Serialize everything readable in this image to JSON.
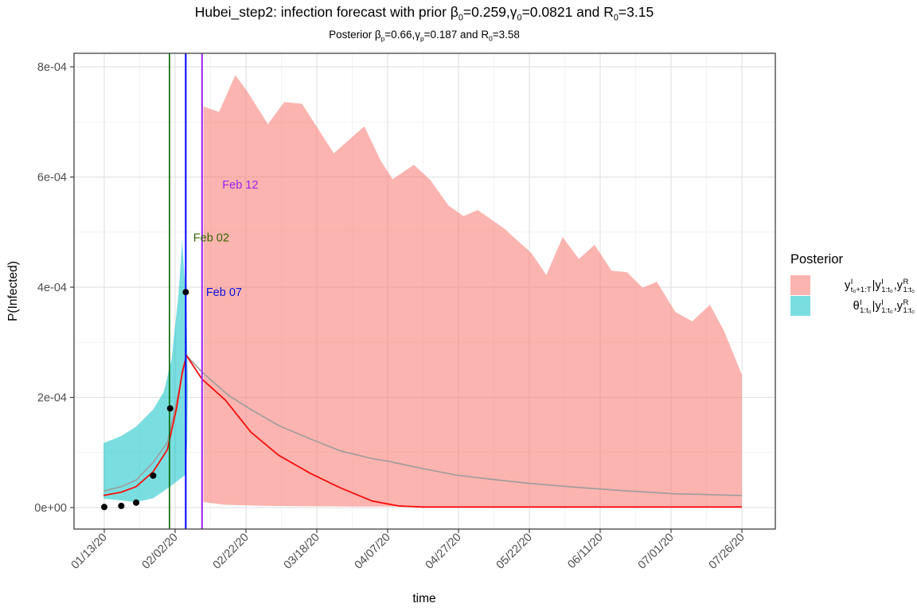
{
  "figure": {
    "title": {
      "plain": "Hubei_step2: infection forecast with prior β0=0.259,γ0=0.0821 and R0=3.15",
      "segments": [
        {
          "text": "Hubei_step2: infection forecast with prior β",
          "sub": "0"
        },
        {
          "text": "=0.259,γ",
          "sub": "0"
        },
        {
          "text": "=0.0821 and R",
          "sub": "0"
        },
        {
          "text": "=3.15"
        }
      ]
    },
    "subtitle": {
      "plain": "Posterior βp=0.66,γp=0.187 and R0=3.58",
      "segments": [
        {
          "text": "Posterior β",
          "sub": "p"
        },
        {
          "text": "=0.66,γ",
          "sub": "p"
        },
        {
          "text": "=0.187 and R",
          "sub": "0"
        },
        {
          "text": "=3.58"
        }
      ]
    }
  },
  "legend": {
    "title": "Posterior",
    "items": [
      {
        "swatch_color": "rgba(248,118,109,0.55)",
        "label_plain": "y^I_{t0+1:T} | y^I_{1:t0}, y^R_{1:t0}",
        "label_segments": [
          {
            "base": "y",
            "sup": "I",
            "sub": "t₀+1:T"
          },
          {
            "text": " | "
          },
          {
            "base": "y",
            "sup": "I",
            "sub": "1:t₀"
          },
          {
            "text": ", "
          },
          {
            "base": "y",
            "sup": "R",
            "sub": "1:t₀"
          }
        ]
      },
      {
        "swatch_color": "rgba(0,191,196,0.52)",
        "label_plain": "θ^I_{1:t0} | y^I_{1:t0}, y^R_{1:t0}",
        "label_segments": [
          {
            "base": "θ",
            "sup": "I",
            "sub": "1:t₀"
          },
          {
            "text": " | "
          },
          {
            "base": "y",
            "sup": "I",
            "sub": "1:t₀"
          },
          {
            "text": ", "
          },
          {
            "base": "y",
            "sup": "R",
            "sub": "1:t₀"
          }
        ]
      }
    ]
  },
  "chart_data": {
    "type": "area",
    "title": "Hubei_step2: infection forecast with prior β0=0.259,γ0=0.0821 and R0=3.15",
    "subtitle": "Posterior βp=0.66,γp=0.187 and R0=3.58",
    "xlabel": "time",
    "ylabel": "P(Infected)",
    "x_axis": {
      "unit": "tick-index (0 = 01/13/20 ... 9 = 07/26/20, ticks equally spaced)",
      "tick_positions": [
        0,
        1,
        2,
        3,
        4,
        5,
        6,
        7,
        8,
        9
      ],
      "tick_labels": [
        "01/13/20",
        "02/02/20",
        "02/22/20",
        "03/18/20",
        "04/07/20",
        "04/27/20",
        "05/22/20",
        "06/11/20",
        "07/01/20",
        "07/26/20"
      ],
      "minor_gridlines": [
        0.5,
        1.5,
        2.5,
        3.5,
        4.5,
        5.5,
        6.5,
        7.5,
        8.5
      ],
      "range": [
        -0.43,
        9.47
      ],
      "label_angle_deg": 45
    },
    "y_axis": {
      "tick_values": [
        0,
        0.0002,
        0.0004,
        0.0006,
        0.0008
      ],
      "tick_labels": [
        "0e+00",
        "2e-04",
        "4e-04",
        "6e-04",
        "8e-04"
      ],
      "minor_gridlines": [
        0.0001,
        0.0003,
        0.0005,
        0.0007
      ],
      "range": [
        -3.9e-05,
        0.000824
      ]
    },
    "bands": [
      {
        "name": "forecast-band",
        "legend_label": "y^I_{t0+1:T} | y^I_{1:t0}, y^R_{1:t0}",
        "color": "rgba(248,118,109,0.55)",
        "upper": [
          [
            1.4,
            0.000728
          ],
          [
            1.62,
            0.000718
          ],
          [
            1.85,
            0.000785
          ],
          [
            2.02,
            0.000755
          ],
          [
            2.31,
            0.000696
          ],
          [
            2.54,
            0.000736
          ],
          [
            2.79,
            0.000733
          ],
          [
            3.24,
            0.000643
          ],
          [
            3.67,
            0.000692
          ],
          [
            3.9,
            0.00063
          ],
          [
            4.07,
            0.000596
          ],
          [
            4.37,
            0.000622
          ],
          [
            4.6,
            0.000595
          ],
          [
            4.86,
            0.000548
          ],
          [
            5.07,
            0.000529
          ],
          [
            5.27,
            0.00054
          ],
          [
            5.64,
            0.000507
          ],
          [
            6.03,
            0.000462
          ],
          [
            6.24,
            0.000422
          ],
          [
            6.47,
            0.000491
          ],
          [
            6.7,
            0.000451
          ],
          [
            6.92,
            0.000477
          ],
          [
            7.16,
            0.00043
          ],
          [
            7.38,
            0.000427
          ],
          [
            7.6,
            0.000399
          ],
          [
            7.8,
            0.00041
          ],
          [
            8.06,
            0.000355
          ],
          [
            8.3,
            0.000338
          ],
          [
            8.55,
            0.000368
          ],
          [
            8.75,
            0.00032
          ],
          [
            9.0,
            0.000241
          ]
        ],
        "lower": [
          [
            1.4,
            1e-05
          ],
          [
            1.7,
            5e-06
          ],
          [
            2.3,
            3e-06
          ],
          [
            3.5,
            2e-06
          ],
          [
            9.0,
            2e-06
          ]
        ]
      },
      {
        "name": "credible-band",
        "legend_label": "θ^I_{1:t0} | y^I_{1:t0}, y^R_{1:t0}",
        "color": "rgba(0,191,196,0.52)",
        "polygon": [
          [
            -0.01,
            0.000117
          ],
          [
            0.24,
            0.00013
          ],
          [
            0.45,
            0.000147
          ],
          [
            0.69,
            0.000178
          ],
          [
            0.84,
            0.00021
          ],
          [
            0.95,
            0.00027
          ],
          [
            1.05,
            0.00039
          ],
          [
            1.1,
            0.000486
          ],
          [
            1.16,
            0.00036
          ],
          [
            1.18,
            0.00022
          ],
          [
            1.17,
            0.00012
          ],
          [
            1.15,
            6e-05
          ],
          [
            0.93,
            3.8e-05
          ],
          [
            0.69,
            1.7e-05
          ],
          [
            0.45,
            1e-05
          ],
          [
            0.24,
            1.3e-05
          ],
          [
            -0.01,
            1.6e-05
          ]
        ]
      }
    ],
    "lines": [
      {
        "name": "median-line-red",
        "color": "#f80e0e",
        "width": 1.8,
        "points": [
          [
            -0.01,
            2.2e-05
          ],
          [
            0.24,
            2.8e-05
          ],
          [
            0.45,
            3.8e-05
          ],
          [
            0.69,
            6.5e-05
          ],
          [
            0.89,
            0.000105
          ],
          [
            1.02,
            0.00018
          ],
          [
            1.1,
            0.000245
          ],
          [
            1.16,
            0.000276
          ],
          [
            1.38,
            0.000233
          ],
          [
            1.71,
            0.000195
          ],
          [
            2.07,
            0.000137
          ],
          [
            2.46,
            9.5e-05
          ],
          [
            2.91,
            6.2e-05
          ],
          [
            3.33,
            3.6e-05
          ],
          [
            3.78,
            1.2e-05
          ],
          [
            4.15,
            3e-06
          ],
          [
            4.5,
            1e-06
          ],
          [
            9.0,
            1e-06
          ]
        ]
      },
      {
        "name": "mean-line-gray",
        "color": "#9c9c9c",
        "width": 1.6,
        "points": [
          [
            -0.01,
            3e-05
          ],
          [
            0.24,
            3.8e-05
          ],
          [
            0.45,
            5e-05
          ],
          [
            0.69,
            8.2e-05
          ],
          [
            0.89,
            0.000118
          ],
          [
            1.02,
            0.000192
          ],
          [
            1.16,
            0.000276
          ],
          [
            1.38,
            0.000246
          ],
          [
            1.75,
            0.000204
          ],
          [
            2.07,
            0.000178
          ],
          [
            2.46,
            0.000149
          ],
          [
            2.94,
            0.000123
          ],
          [
            3.33,
            0.000103
          ],
          [
            3.78,
            8.9e-05
          ],
          [
            4.01,
            8.4e-05
          ],
          [
            4.52,
            7e-05
          ],
          [
            4.97,
            5.9e-05
          ],
          [
            5.49,
            5.1e-05
          ],
          [
            6.0,
            4.4e-05
          ],
          [
            6.55,
            3.8e-05
          ],
          [
            7.29,
            3.1e-05
          ],
          [
            8.05,
            2.5e-05
          ],
          [
            9.0,
            2.2e-05
          ]
        ]
      }
    ],
    "points": {
      "name": "observed-points",
      "color": "#000000",
      "radius": 4,
      "values": [
        [
          0.0,
          1e-06
        ],
        [
          0.24,
          3e-06
        ],
        [
          0.45,
          9e-06
        ],
        [
          0.69,
          5.8e-05
        ],
        [
          0.93,
          0.00018
        ],
        [
          1.15,
          0.000391
        ]
      ]
    },
    "vlines": [
      {
        "label": "Feb 02",
        "x": 0.92,
        "color": "#006400",
        "width": 1.6
      },
      {
        "label": "Feb 07",
        "x": 1.15,
        "color": "#0000ff",
        "width": 2.0
      },
      {
        "label": "Feb 12",
        "x": 1.38,
        "color": "#a020f0",
        "width": 2.0
      }
    ],
    "annotations": [
      {
        "text": "Feb 12",
        "x": 1.92,
        "y": 0.000586,
        "color": "#a020f0"
      },
      {
        "text": "Feb 02",
        "x": 1.51,
        "y": 0.00049,
        "color": "#336600"
      },
      {
        "text": "Feb 07",
        "x": 1.69,
        "y": 0.000391,
        "color": "#0f0fe0"
      }
    ],
    "grid": {
      "major_color": "#e3e3e3",
      "minor_color": "#f0f0f0",
      "panel_border": "#404040",
      "background": "#ffffff"
    },
    "legend_position": "right"
  }
}
